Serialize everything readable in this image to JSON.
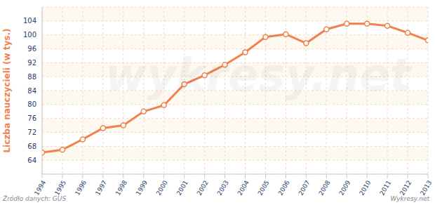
{
  "chart_data": {
    "type": "line",
    "y_label": "Liczba nauczycieli (w tys.)",
    "annotations": [
      "Źródło danych: GUS",
      "Wykresy.net",
      "wykresy.net"
    ],
    "x": [
      1994,
      1995,
      1996,
      1997,
      1998,
      1999,
      2000,
      2001,
      2002,
      2003,
      2004,
      2005,
      2006,
      2007,
      2008,
      2009,
      2010,
      2011,
      2012,
      2013
    ],
    "values": [
      66.2,
      67,
      70,
      73.2,
      74,
      78,
      79.8,
      85.8,
      88.4,
      91.4,
      95,
      99.4,
      100.2,
      97.6,
      101.6,
      103.2,
      103.2,
      102.6,
      100.6,
      98.4
    ],
    "color": "#f0824b",
    "marker": "circle",
    "xlim": [
      1994,
      2013
    ],
    "xticks": [
      1994,
      1995,
      1996,
      1997,
      1998,
      1999,
      2000,
      2001,
      2002,
      2003,
      2004,
      2005,
      2006,
      2007,
      2008,
      2009,
      2010,
      2011,
      2012,
      2013
    ],
    "ylim": [
      60,
      108
    ],
    "yticks": [
      64,
      68,
      72,
      76,
      80,
      84,
      88,
      92,
      96,
      100,
      104
    ],
    "grid": true
  }
}
